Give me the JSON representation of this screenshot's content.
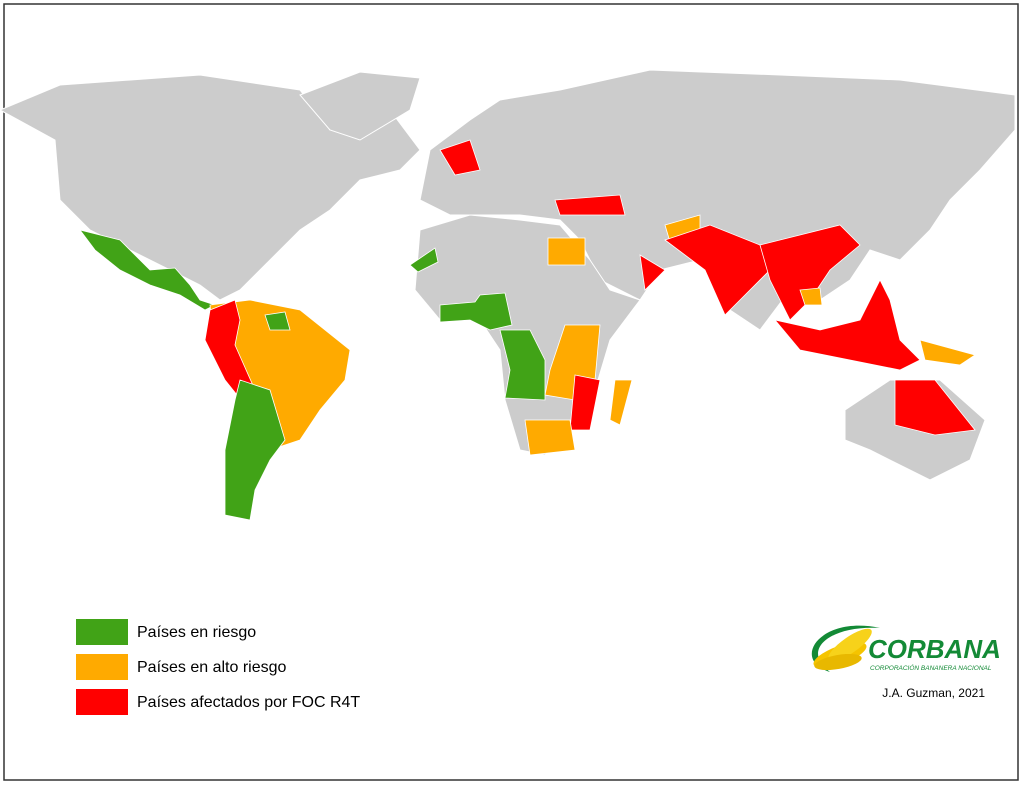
{
  "legend": [
    {
      "label": "Países en riesgo",
      "color": "#41a317"
    },
    {
      "label": "Países en alto riesgo",
      "color": "#ffaa00"
    },
    {
      "label": "Países afectados por FOC R4T",
      "color": "#ff0000"
    }
  ],
  "logo": {
    "name": "CORBANA",
    "tagline": "CORPORACIÓN BANANERA NACIONAL"
  },
  "credit": "J.A. Guzman, 2021"
}
